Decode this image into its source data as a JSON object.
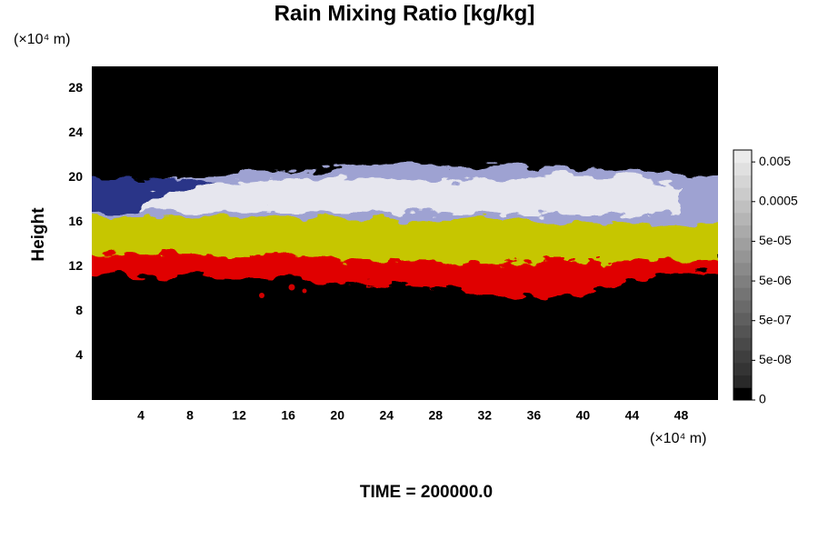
{
  "chart_data": {
    "type": "field",
    "title": "Rain Mixing Ratio [kg/kg]",
    "ylabel": "Height",
    "y_unit": "(×10⁴ m)",
    "x_unit": "(×10⁴ m)",
    "xlim": [
      0,
      51
    ],
    "ylim": [
      0,
      30
    ],
    "xticks": [
      4,
      8,
      12,
      16,
      20,
      24,
      28,
      32,
      36,
      40,
      44,
      48
    ],
    "yticks": [
      4,
      8,
      12,
      16,
      20,
      24,
      28
    ],
    "colorbar": {
      "scale": "log",
      "clim": [
        5e-09,
        0.01
      ],
      "ticks": [
        {
          "value": 0.005,
          "label": "0.005"
        },
        {
          "value": 0.0005,
          "label": "0.0005"
        },
        {
          "value": 5e-05,
          "label": "5e-05"
        },
        {
          "value": 5e-06,
          "label": "5e-06"
        },
        {
          "value": 5e-07,
          "label": "5e-07"
        },
        {
          "value": 5e-08,
          "label": "5e-08"
        },
        0
      ]
    },
    "annotation": "TIME = 200000.0"
  }
}
